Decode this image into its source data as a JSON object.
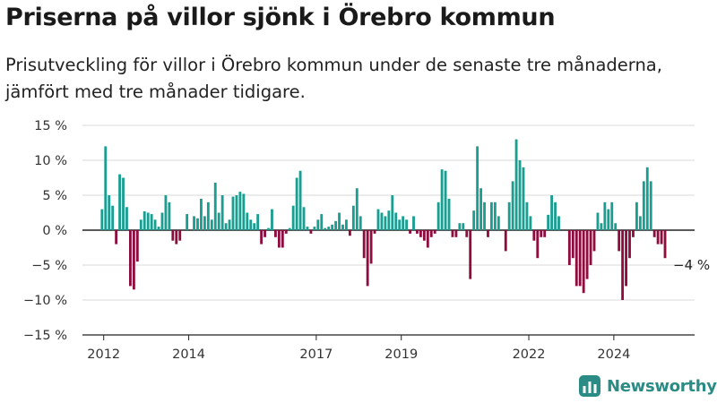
{
  "title": "Priserna på villor sjönk i Örebro kommun",
  "subtitle": "Prisutveckling för villor i Örebro kommun under de senaste tre månaderna, jämfört med tre månader tidigare.",
  "brand": {
    "name": "Newsworthy",
    "logo_icon": "bar-chart-logo-icon"
  },
  "colors": {
    "positive": "#1a9e91",
    "negative": "#8e0c3e",
    "axis": "#222222",
    "grid": "#cccccc"
  },
  "chart_data": {
    "type": "bar",
    "xlabel": "",
    "ylabel": "",
    "ylim": [
      -15,
      15
    ],
    "yticks": [
      15,
      10,
      5,
      0,
      -5,
      -10,
      -15
    ],
    "ytick_labels": [
      "15 %",
      "10 %",
      "5 %",
      "0 %",
      "−5 %",
      "−10 %",
      "−15 %"
    ],
    "xtick_labels": [
      "2012",
      "2014",
      "2017",
      "2019",
      "2022",
      "2024"
    ],
    "xticks": [
      2012.0,
      2014.0,
      2017.0,
      2019.0,
      2022.0,
      2024.0
    ],
    "grid": false,
    "x_start": 2011.96,
    "x_step": 0.0833,
    "values": [
      3,
      12,
      5,
      3.5,
      -2,
      8,
      7.5,
      3.3,
      -8,
      -8.5,
      -4.5,
      1.5,
      2.7,
      2.5,
      2.3,
      1.5,
      0.5,
      2.5,
      5,
      4,
      -1.5,
      -2,
      -1.5,
      0,
      2.3,
      0,
      2,
      1.7,
      4.5,
      2,
      4,
      1.5,
      6.8,
      2.5,
      5,
      1,
      1.5,
      4.8,
      5,
      5.5,
      5.2,
      2.5,
      1.5,
      1,
      2.3,
      -2,
      -1,
      0.3,
      3,
      -1,
      -2.5,
      -2.5,
      -0.5,
      0.3,
      3.5,
      7.5,
      8.5,
      3.3,
      0.5,
      -0.5,
      0.5,
      1.5,
      2.3,
      0.3,
      0.5,
      0.8,
      1.3,
      2.5,
      0.8,
      1.5,
      -0.8,
      3.5,
      6,
      2,
      -4,
      -8,
      -4.8,
      -0.5,
      3,
      2.5,
      2,
      2.8,
      5,
      2.5,
      1.5,
      2,
      1.5,
      -0.5,
      2,
      -0.5,
      -1,
      -1.5,
      -2.5,
      -1,
      -0.5,
      4,
      8.7,
      8.5,
      4.5,
      -1,
      -1,
      1,
      1,
      -1,
      -7,
      2.8,
      12,
      6,
      4,
      -1,
      4,
      4,
      2,
      0,
      -3,
      4,
      7,
      13,
      10,
      9,
      4,
      2,
      -1.5,
      -4,
      -1,
      -1,
      2.2,
      5,
      4,
      2,
      0,
      0,
      -5,
      -4,
      -8,
      -8,
      -9,
      -7,
      -5,
      -3,
      2.5,
      1,
      4,
      3,
      4,
      1,
      -3,
      -10,
      -8,
      -4,
      -1,
      4,
      2,
      7,
      9,
      7,
      -1,
      -2,
      -2,
      -4
    ],
    "annotation": {
      "text": "−4 %",
      "value": -4
    }
  }
}
